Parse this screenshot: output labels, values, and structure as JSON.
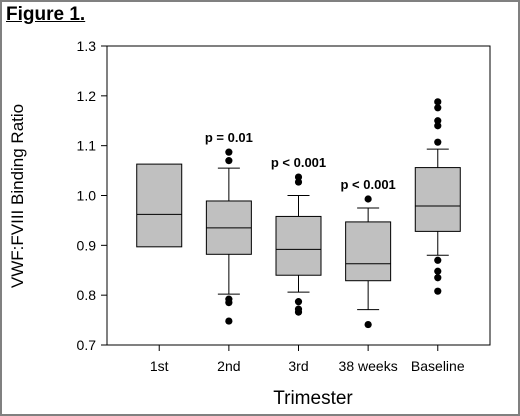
{
  "figure_label": "Figure 1.",
  "colors": {
    "box_fill": "#c0c0c0",
    "stroke": "#000000",
    "outlier": "#000000",
    "background": "#ffffff"
  },
  "chart_data": {
    "type": "box",
    "title": "",
    "xlabel": "Trimester",
    "ylabel": "VWF:FVIII Binding Ratio",
    "ylim": [
      0.7,
      1.3
    ],
    "yticks": [
      "0.7",
      "0.8",
      "0.9",
      "1.0",
      "1.1",
      "1.2",
      "1.3"
    ],
    "grid": false,
    "categories": [
      "1st",
      "2nd",
      "3rd",
      "38 weeks",
      "Baseline"
    ],
    "boxes": [
      {
        "category": "1st",
        "q1": 0.897,
        "median": 0.962,
        "q3": 1.063,
        "whisker_low": null,
        "whisker_high": null,
        "outliers": [],
        "annotation": ""
      },
      {
        "category": "2nd",
        "q1": 0.882,
        "median": 0.935,
        "q3": 0.989,
        "whisker_low": 0.802,
        "whisker_high": 1.055,
        "outliers": [
          0.748,
          0.785,
          0.792,
          1.07,
          1.087
        ],
        "annotation": "p = 0.01"
      },
      {
        "category": "3rd",
        "q1": 0.84,
        "median": 0.892,
        "q3": 0.958,
        "whisker_low": 0.806,
        "whisker_high": 1.0,
        "outliers": [
          0.766,
          0.772,
          0.787,
          1.027,
          1.037
        ],
        "annotation": "p < 0.001"
      },
      {
        "category": "38 weeks",
        "q1": 0.829,
        "median": 0.863,
        "q3": 0.947,
        "whisker_low": 0.771,
        "whisker_high": 0.975,
        "outliers": [
          0.741,
          0.993
        ],
        "annotation": "p < 0.001"
      },
      {
        "category": "Baseline",
        "q1": 0.928,
        "median": 0.979,
        "q3": 1.056,
        "whisker_low": 0.88,
        "whisker_high": 1.093,
        "outliers": [
          0.808,
          0.835,
          0.848,
          0.87,
          1.107,
          1.14,
          1.15,
          1.176,
          1.188
        ],
        "annotation": ""
      }
    ]
  }
}
